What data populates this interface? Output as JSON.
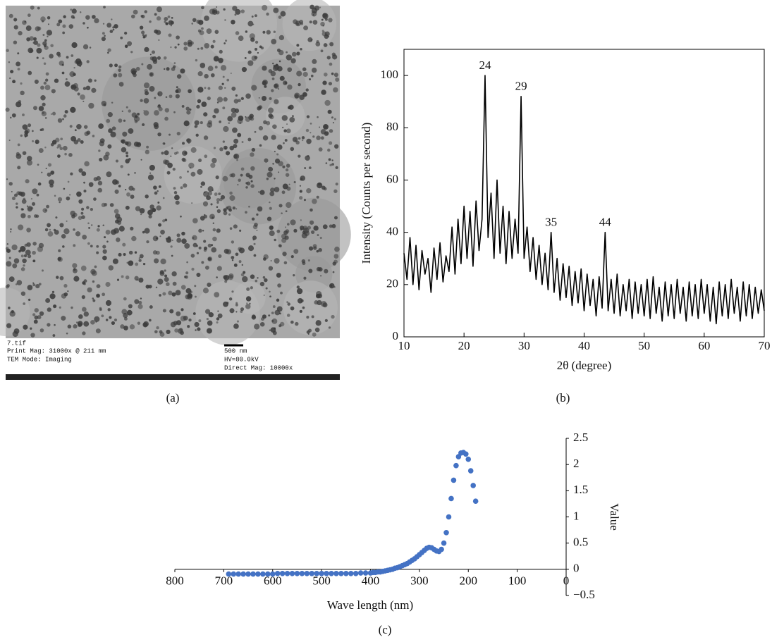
{
  "image": {
    "panel_label": "(a)",
    "caption": {
      "file": "7.tif",
      "print_mag": "Print Mag: 31000x @ 211 mm",
      "mode": "TEM Mode: Imaging",
      "scale": "500 nm",
      "hv": "HV=80.0kV",
      "direct_mag": "Direct Mag: 10000x"
    }
  },
  "chart_data": [
    {
      "type": "line",
      "panel_label": "(b)",
      "x_label": "2θ (degree)",
      "y_label": "Intensity (Counts per second)",
      "color": "#000000",
      "xlim": [
        10,
        70
      ],
      "xticks": [
        10,
        20,
        30,
        40,
        50,
        60,
        70
      ],
      "ylim": [
        0,
        110
      ],
      "yticks": [
        0,
        20,
        40,
        60,
        80,
        100
      ],
      "annotations": [
        {
          "label": "24",
          "x": 23.5,
          "y": 100
        },
        {
          "label": "29",
          "x": 29.5,
          "y": 92
        },
        {
          "label": "35",
          "x": 34.5,
          "y": 40
        },
        {
          "label": "44",
          "x": 43.5,
          "y": 40
        }
      ],
      "x": [
        10,
        10.5,
        11,
        11.5,
        12,
        12.5,
        13,
        13.5,
        14,
        14.5,
        15,
        15.5,
        16,
        16.5,
        17,
        17.5,
        18,
        18.5,
        19,
        19.5,
        20,
        20.5,
        21,
        21.5,
        22,
        22.5,
        23,
        23.5,
        24,
        24.5,
        25,
        25.5,
        26,
        26.5,
        27,
        27.5,
        28,
        28.5,
        29,
        29.5,
        30,
        30.5,
        31,
        31.5,
        32,
        32.5,
        33,
        33.5,
        34,
        34.5,
        35,
        35.5,
        36,
        36.5,
        37,
        37.5,
        38,
        38.5,
        39,
        39.5,
        40,
        40.5,
        41,
        41.5,
        42,
        42.5,
        43,
        43.5,
        44,
        44.5,
        45,
        45.5,
        46,
        46.5,
        47,
        47.5,
        48,
        48.5,
        49,
        49.5,
        50,
        50.5,
        51,
        51.5,
        52,
        52.5,
        53,
        53.5,
        54,
        54.5,
        55,
        55.5,
        56,
        56.5,
        57,
        57.5,
        58,
        58.5,
        59,
        59.5,
        60,
        60.5,
        61,
        61.5,
        62,
        62.5,
        63,
        63.5,
        64,
        64.5,
        65,
        65.5,
        66,
        66.5,
        67,
        67.5,
        68,
        68.5,
        69,
        69.5,
        70
      ],
      "values": [
        32,
        22,
        38,
        20,
        35,
        18,
        33,
        24,
        30,
        17,
        34,
        22,
        36,
        21,
        31,
        25,
        42,
        24,
        45,
        28,
        50,
        30,
        48,
        27,
        52,
        33,
        45,
        100,
        38,
        55,
        30,
        60,
        32,
        50,
        28,
        48,
        30,
        45,
        32,
        92,
        30,
        42,
        25,
        38,
        22,
        35,
        20,
        32,
        18,
        40,
        17,
        30,
        14,
        28,
        15,
        27,
        12,
        25,
        13,
        26,
        10,
        24,
        12,
        22,
        8,
        23,
        11,
        40,
        10,
        22,
        9,
        24,
        8,
        20,
        10,
        22,
        7,
        21,
        9,
        20,
        8,
        22,
        7,
        23,
        9,
        19,
        6,
        21,
        8,
        20,
        7,
        22,
        9,
        19,
        6,
        21,
        8,
        20,
        7,
        22,
        9,
        20,
        6,
        19,
        5,
        21,
        8,
        20,
        7,
        22,
        9,
        19,
        6,
        21,
        8,
        20,
        7,
        19,
        9,
        18,
        10
      ]
    },
    {
      "type": "scatter",
      "panel_label": "(c)",
      "x_label": "Wave length (nm)",
      "y_label": "Value",
      "color": "#4472c4",
      "xlim": [
        800,
        0
      ],
      "xticks": [
        800,
        700,
        600,
        500,
        400,
        300,
        200,
        100,
        0
      ],
      "ylim": [
        -0.5,
        2.5
      ],
      "yticks": [
        {
          "value": -0.5,
          "label": "−0.5"
        },
        0,
        0.5,
        1,
        1.5,
        2,
        2.5
      ],
      "x": [
        690,
        680,
        670,
        660,
        650,
        640,
        630,
        620,
        610,
        600,
        590,
        580,
        570,
        560,
        550,
        540,
        530,
        520,
        510,
        500,
        490,
        480,
        470,
        460,
        450,
        440,
        430,
        420,
        410,
        400,
        395,
        390,
        385,
        380,
        375,
        370,
        365,
        360,
        355,
        350,
        345,
        340,
        335,
        330,
        325,
        320,
        315,
        310,
        305,
        300,
        295,
        290,
        285,
        280,
        275,
        270,
        265,
        260,
        255,
        250,
        245,
        240,
        235,
        230,
        225,
        220,
        215,
        210,
        205,
        200,
        195,
        190,
        185
      ],
      "values": [
        -0.09,
        -0.09,
        -0.09,
        -0.09,
        -0.09,
        -0.09,
        -0.09,
        -0.09,
        -0.09,
        -0.09,
        -0.08,
        -0.08,
        -0.08,
        -0.08,
        -0.08,
        -0.08,
        -0.08,
        -0.08,
        -0.08,
        -0.08,
        -0.08,
        -0.08,
        -0.08,
        -0.08,
        -0.08,
        -0.08,
        -0.08,
        -0.07,
        -0.07,
        -0.07,
        -0.06,
        -0.06,
        -0.05,
        -0.05,
        -0.04,
        -0.03,
        -0.02,
        -0.01,
        0.0,
        0.02,
        0.03,
        0.05,
        0.07,
        0.09,
        0.11,
        0.14,
        0.17,
        0.2,
        0.24,
        0.28,
        0.32,
        0.36,
        0.4,
        0.42,
        0.41,
        0.38,
        0.35,
        0.34,
        0.38,
        0.5,
        0.7,
        1.0,
        1.35,
        1.7,
        1.98,
        2.15,
        2.22,
        2.23,
        2.2,
        2.1,
        1.88,
        1.6,
        1.3
      ]
    }
  ]
}
